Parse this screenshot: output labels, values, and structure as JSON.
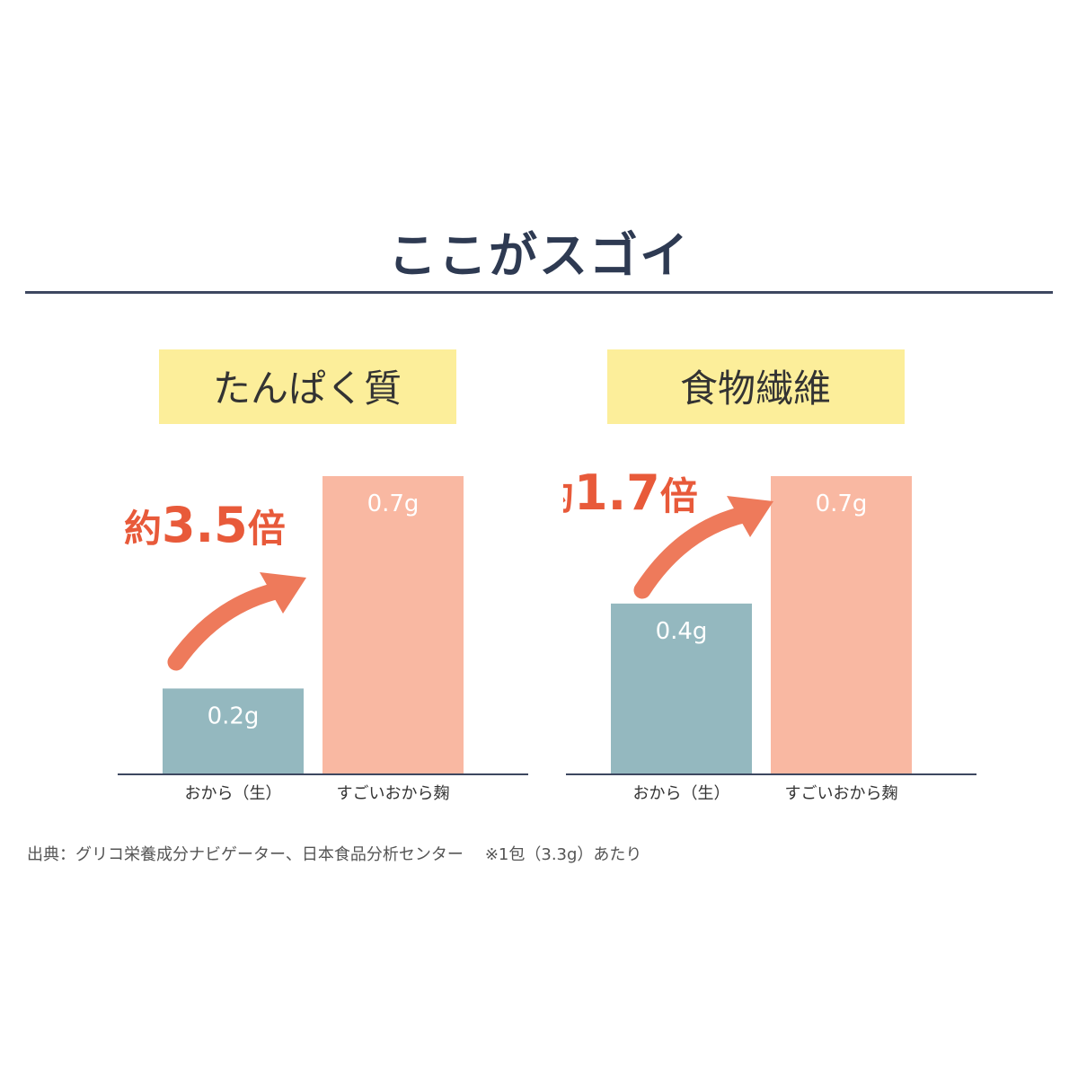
{
  "header": {
    "title": "ここがスゴイ"
  },
  "footer": {
    "source": "出典：グリコ栄養成分ナビゲーター、日本食品分析センター",
    "note": "※1包（3.3g）あたり"
  },
  "colors": {
    "highlight": "#fcee9a",
    "bar_okara": "#94b8bf",
    "bar_koji": "#f9b8a2",
    "arrow": "#ee7a5b",
    "multiplier": "#e85a3a",
    "axis": "#3d4760"
  },
  "chart_data": [
    {
      "type": "bar",
      "title": "たんぱく質",
      "categories": [
        "おから（生）",
        "すごいおから麹"
      ],
      "values": [
        0.2,
        0.7
      ],
      "labels": [
        "0.2g",
        "0.7g"
      ],
      "unit": "g",
      "multiplier": {
        "prefix": "約",
        "value": "3.5",
        "suffix": "倍"
      },
      "ylim": [
        0,
        0.7
      ]
    },
    {
      "type": "bar",
      "title": "食物繊維",
      "categories": [
        "おから（生）",
        "すごいおから麹"
      ],
      "values": [
        0.4,
        0.7
      ],
      "labels": [
        "0.4g",
        "0.7g"
      ],
      "unit": "g",
      "multiplier": {
        "prefix": "約",
        "value": "1.7",
        "suffix": "倍"
      },
      "ylim": [
        0,
        0.7
      ]
    }
  ]
}
